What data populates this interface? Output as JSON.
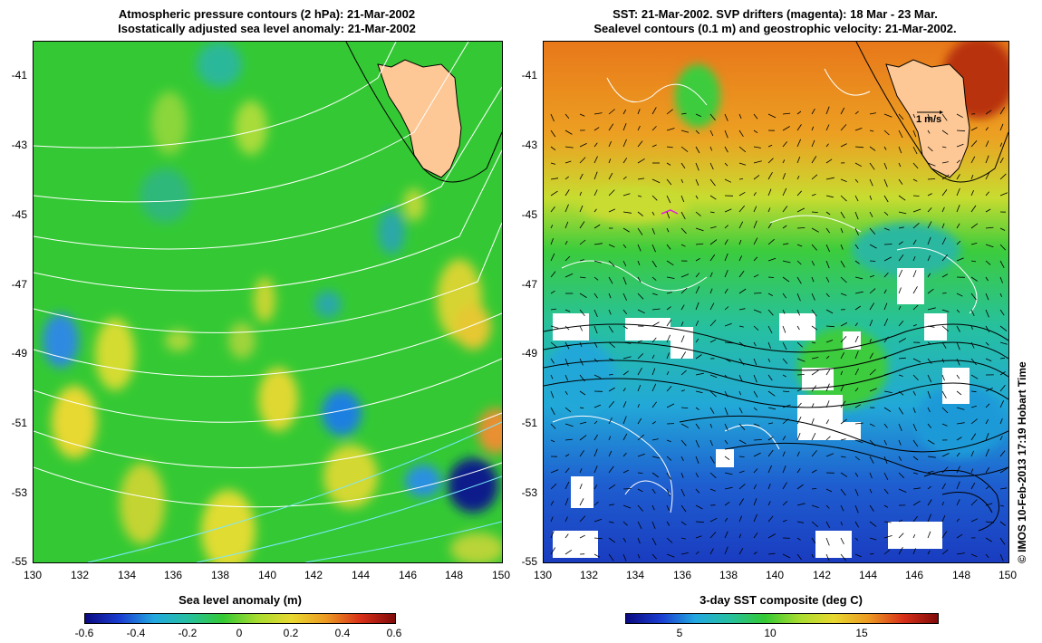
{
  "left_panel": {
    "title_line1": "Atmospheric pressure contours (2 hPa): 21-Mar-2002",
    "title_line2": "Isostatically adjusted sea level anomaly: 21-Mar-2002",
    "colorbar_label": "Sea level anomaly (m)",
    "colorbar_ticks": [
      "-0.6",
      "-0.4",
      "-0.2",
      "0",
      "0.2",
      "0.4",
      "0.6"
    ]
  },
  "right_panel": {
    "title_line1": "SST: 21-Mar-2002. SVP drifters (magenta): 18 Mar - 23 Mar.",
    "title_line2": "Sealevel contours (0.1 m) and geostrophic velocity: 21-Mar-2002.",
    "colorbar_label": "3-day SST composite (deg C)",
    "colorbar_ticks": [
      "5",
      "10",
      "15"
    ],
    "velocity_scale_label": "1 m/s"
  },
  "axes": {
    "lat_ticks": [
      "-41",
      "-43",
      "-45",
      "-47",
      "-49",
      "-51",
      "-53",
      "-55"
    ],
    "lon_ticks": [
      "130",
      "132",
      "134",
      "136",
      "138",
      "140",
      "142",
      "144",
      "146",
      "148",
      "150"
    ]
  },
  "credit": "© IMOS 10-Feb-2013 17:19 Hobart Time",
  "colors": {
    "land": "#fdc896",
    "sla_base": "#2ecc2e",
    "sst_warm": "#e8791a",
    "sst_cold": "#1f44c8"
  }
}
